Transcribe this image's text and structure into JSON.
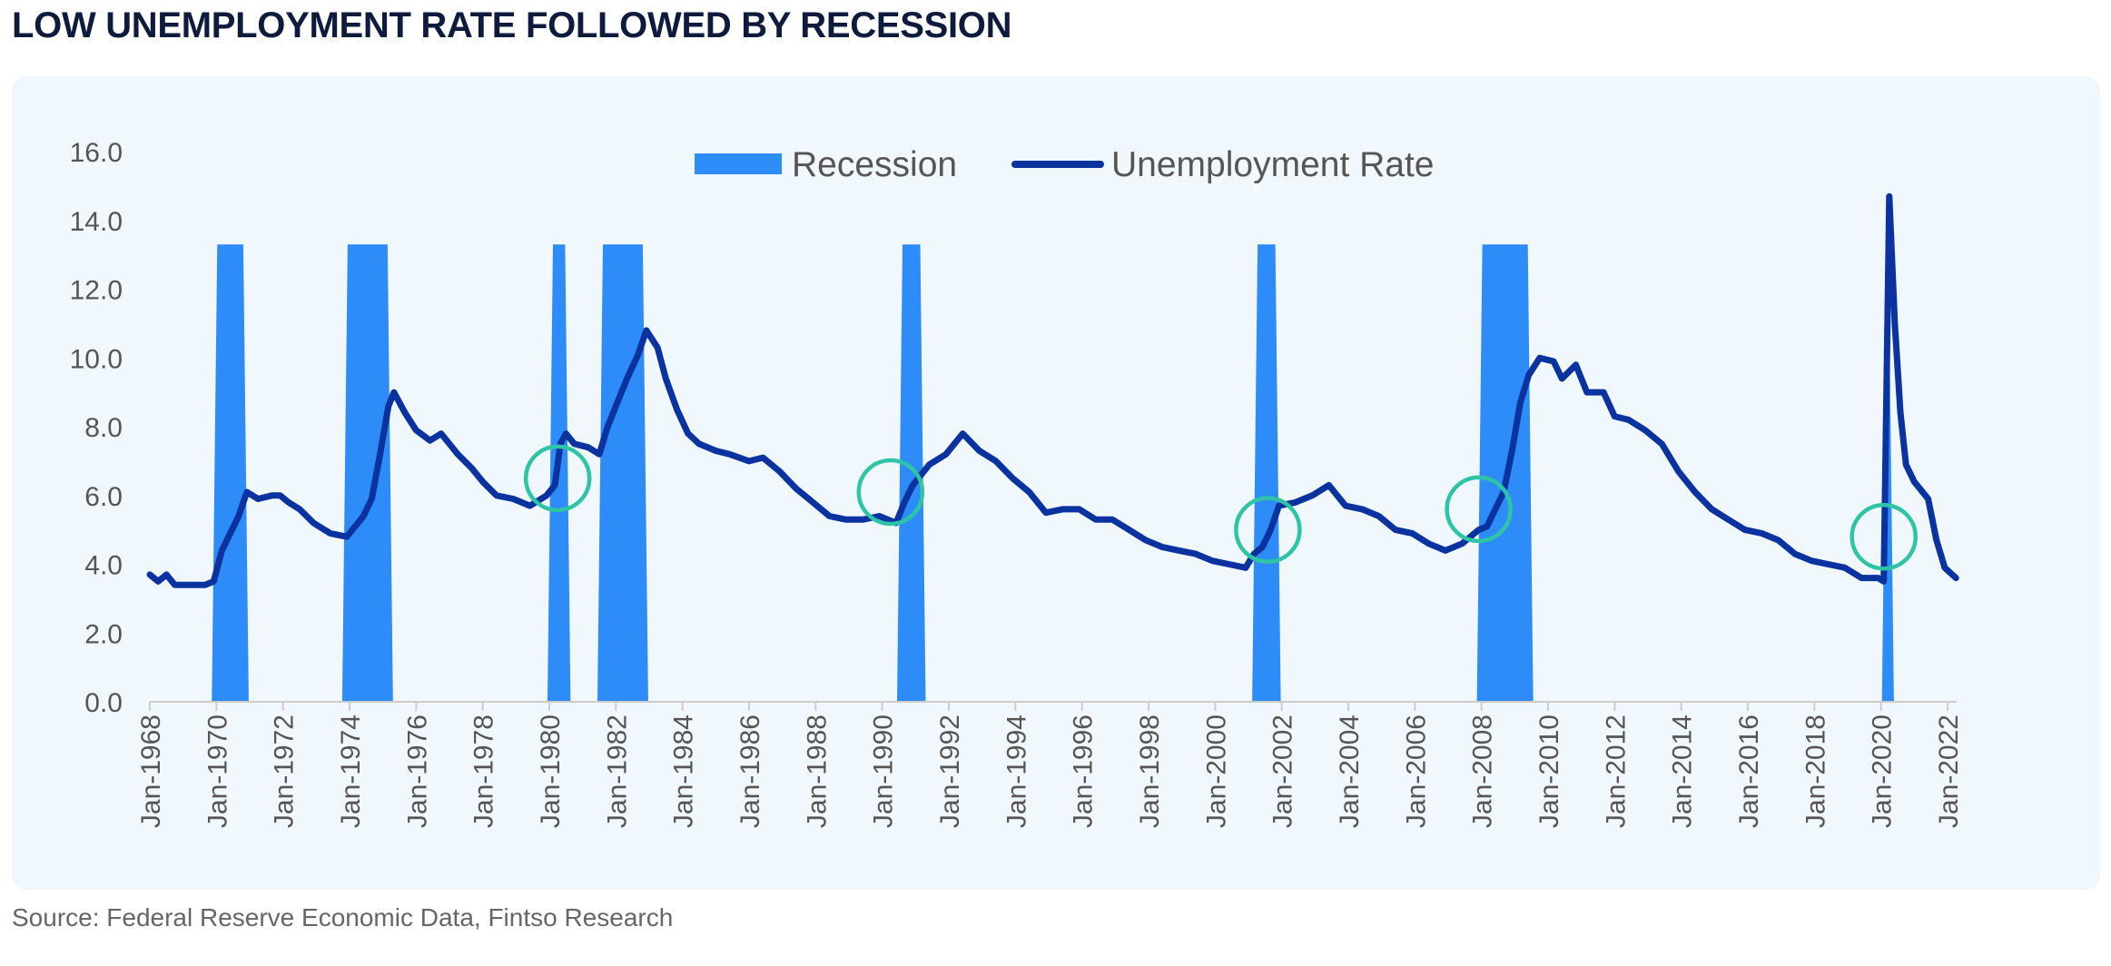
{
  "page": {
    "title": "LOW UNEMPLOYMENT RATE FOLLOWED BY RECESSION",
    "source": "Source: Federal Reserve Economic Data, Fintso Research"
  },
  "colors": {
    "recession": "#2d8cf8",
    "unemployment": "#0b33a0",
    "circle": "#2ec4a5",
    "axis": "#cccccc",
    "panel": "#f0f7fd"
  },
  "chart_data": {
    "type": "line",
    "title": "LOW UNEMPLOYMENT RATE FOLLOWED BY RECESSION",
    "ylim": [
      0,
      16
    ],
    "y_ticks": [
      "0.0",
      "2.0",
      "4.0",
      "6.0",
      "8.0",
      "10.0",
      "12.0",
      "14.0",
      "16.0"
    ],
    "x_ticks": [
      "Jan-1968",
      "Jan-1970",
      "Jan-1972",
      "Jan-1974",
      "Jan-1976",
      "Jan-1978",
      "Jan-1980",
      "Jan-1982",
      "Jan-1984",
      "Jan-1986",
      "Jan-1988",
      "Jan-1990",
      "Jan-1992",
      "Jan-1994",
      "Jan-1996",
      "Jan-1998",
      "Jan-2000",
      "Jan-2002",
      "Jan-2004",
      "Jan-2006",
      "Jan-2008",
      "Jan-2010",
      "Jan-2012",
      "Jan-2014",
      "Jan-2016",
      "Jan-2018",
      "Jan-2020",
      "Jan-2022"
    ],
    "x_range": [
      "1968-01",
      "2022-04"
    ],
    "legend": {
      "position": "top-center",
      "entries": [
        "Recession",
        "Unemployment Rate"
      ]
    },
    "series": [
      {
        "name": "Unemployment Rate",
        "kind": "line",
        "points": [
          [
            "1968-01",
            3.7
          ],
          [
            "1968-04",
            3.5
          ],
          [
            "1968-07",
            3.7
          ],
          [
            "1968-10",
            3.4
          ],
          [
            "1969-03",
            3.4
          ],
          [
            "1969-09",
            3.4
          ],
          [
            "1969-12",
            3.5
          ],
          [
            "1970-03",
            4.4
          ],
          [
            "1970-06",
            4.9
          ],
          [
            "1970-09",
            5.4
          ],
          [
            "1970-12",
            6.1
          ],
          [
            "1971-04",
            5.9
          ],
          [
            "1971-09",
            6.0
          ],
          [
            "1971-12",
            6.0
          ],
          [
            "1972-03",
            5.8
          ],
          [
            "1972-07",
            5.6
          ],
          [
            "1972-12",
            5.2
          ],
          [
            "1973-06",
            4.9
          ],
          [
            "1973-12",
            4.8
          ],
          [
            "1974-03",
            5.1
          ],
          [
            "1974-06",
            5.4
          ],
          [
            "1974-09",
            5.9
          ],
          [
            "1974-12",
            7.2
          ],
          [
            "1975-03",
            8.6
          ],
          [
            "1975-05",
            9.0
          ],
          [
            "1975-09",
            8.4
          ],
          [
            "1976-01",
            7.9
          ],
          [
            "1976-06",
            7.6
          ],
          [
            "1976-10",
            7.8
          ],
          [
            "1977-04",
            7.2
          ],
          [
            "1977-09",
            6.8
          ],
          [
            "1978-01",
            6.4
          ],
          [
            "1978-06",
            6.0
          ],
          [
            "1978-12",
            5.9
          ],
          [
            "1979-06",
            5.7
          ],
          [
            "1979-12",
            6.0
          ],
          [
            "1980-03",
            6.3
          ],
          [
            "1980-05",
            7.5
          ],
          [
            "1980-07",
            7.8
          ],
          [
            "1980-10",
            7.5
          ],
          [
            "1981-03",
            7.4
          ],
          [
            "1981-07",
            7.2
          ],
          [
            "1981-10",
            8.0
          ],
          [
            "1982-01",
            8.6
          ],
          [
            "1982-05",
            9.4
          ],
          [
            "1982-09",
            10.1
          ],
          [
            "1982-12",
            10.8
          ],
          [
            "1983-04",
            10.3
          ],
          [
            "1983-07",
            9.4
          ],
          [
            "1983-11",
            8.5
          ],
          [
            "1984-03",
            7.8
          ],
          [
            "1984-07",
            7.5
          ],
          [
            "1985-01",
            7.3
          ],
          [
            "1985-06",
            7.2
          ],
          [
            "1986-01",
            7.0
          ],
          [
            "1986-06",
            7.1
          ],
          [
            "1986-12",
            6.7
          ],
          [
            "1987-06",
            6.2
          ],
          [
            "1987-12",
            5.8
          ],
          [
            "1988-06",
            5.4
          ],
          [
            "1988-12",
            5.3
          ],
          [
            "1989-06",
            5.3
          ],
          [
            "1989-12",
            5.4
          ],
          [
            "1990-06",
            5.2
          ],
          [
            "1990-09",
            5.8
          ],
          [
            "1990-12",
            6.3
          ],
          [
            "1991-06",
            6.9
          ],
          [
            "1991-12",
            7.2
          ],
          [
            "1992-06",
            7.8
          ],
          [
            "1992-12",
            7.3
          ],
          [
            "1993-06",
            7.0
          ],
          [
            "1993-12",
            6.5
          ],
          [
            "1994-06",
            6.1
          ],
          [
            "1994-12",
            5.5
          ],
          [
            "1995-06",
            5.6
          ],
          [
            "1995-12",
            5.6
          ],
          [
            "1996-06",
            5.3
          ],
          [
            "1996-12",
            5.3
          ],
          [
            "1997-06",
            5.0
          ],
          [
            "1997-12",
            4.7
          ],
          [
            "1998-06",
            4.5
          ],
          [
            "1998-12",
            4.4
          ],
          [
            "1999-06",
            4.3
          ],
          [
            "1999-12",
            4.1
          ],
          [
            "2000-06",
            4.0
          ],
          [
            "2000-12",
            3.9
          ],
          [
            "2001-03",
            4.3
          ],
          [
            "2001-06",
            4.5
          ],
          [
            "2001-09",
            5.0
          ],
          [
            "2001-12",
            5.7
          ],
          [
            "2002-06",
            5.8
          ],
          [
            "2002-12",
            6.0
          ],
          [
            "2003-06",
            6.3
          ],
          [
            "2003-12",
            5.7
          ],
          [
            "2004-06",
            5.6
          ],
          [
            "2004-12",
            5.4
          ],
          [
            "2005-06",
            5.0
          ],
          [
            "2005-12",
            4.9
          ],
          [
            "2006-06",
            4.6
          ],
          [
            "2006-12",
            4.4
          ],
          [
            "2007-06",
            4.6
          ],
          [
            "2007-12",
            5.0
          ],
          [
            "2008-03",
            5.1
          ],
          [
            "2008-06",
            5.6
          ],
          [
            "2008-09",
            6.1
          ],
          [
            "2008-12",
            7.3
          ],
          [
            "2009-03",
            8.7
          ],
          [
            "2009-06",
            9.5
          ],
          [
            "2009-10",
            10.0
          ],
          [
            "2010-03",
            9.9
          ],
          [
            "2010-06",
            9.4
          ],
          [
            "2010-11",
            9.8
          ],
          [
            "2011-03",
            9.0
          ],
          [
            "2011-09",
            9.0
          ],
          [
            "2012-01",
            8.3
          ],
          [
            "2012-06",
            8.2
          ],
          [
            "2012-12",
            7.9
          ],
          [
            "2013-06",
            7.5
          ],
          [
            "2013-12",
            6.7
          ],
          [
            "2014-06",
            6.1
          ],
          [
            "2014-12",
            5.6
          ],
          [
            "2015-06",
            5.3
          ],
          [
            "2015-12",
            5.0
          ],
          [
            "2016-06",
            4.9
          ],
          [
            "2016-12",
            4.7
          ],
          [
            "2017-06",
            4.3
          ],
          [
            "2017-12",
            4.1
          ],
          [
            "2018-06",
            4.0
          ],
          [
            "2018-12",
            3.9
          ],
          [
            "2019-06",
            3.6
          ],
          [
            "2019-12",
            3.6
          ],
          [
            "2020-02",
            3.5
          ],
          [
            "2020-04",
            14.7
          ],
          [
            "2020-06",
            11.0
          ],
          [
            "2020-08",
            8.4
          ],
          [
            "2020-10",
            6.9
          ],
          [
            "2021-01",
            6.4
          ],
          [
            "2021-06",
            5.9
          ],
          [
            "2021-09",
            4.7
          ],
          [
            "2021-12",
            3.9
          ],
          [
            "2022-04",
            3.6
          ]
        ]
      },
      {
        "name": "Recession",
        "kind": "bars",
        "height": 13.3,
        "periods": [
          [
            "1969-12",
            "1970-11"
          ],
          [
            "1973-11",
            "1975-03"
          ],
          [
            "1980-01",
            "1980-07"
          ],
          [
            "1981-07",
            "1982-11"
          ],
          [
            "1990-07",
            "1991-03"
          ],
          [
            "2001-03",
            "2001-11"
          ],
          [
            "2007-12",
            "2009-06"
          ],
          [
            "2020-02",
            "2020-04"
          ]
        ]
      }
    ],
    "annotations": {
      "type": "circle-markers",
      "points": [
        [
          "1980-04",
          6.5
        ],
        [
          "1990-04",
          6.1
        ],
        [
          "2001-08",
          5.0
        ],
        [
          "2007-12",
          5.6
        ],
        [
          "2020-02",
          4.8
        ]
      ]
    }
  }
}
